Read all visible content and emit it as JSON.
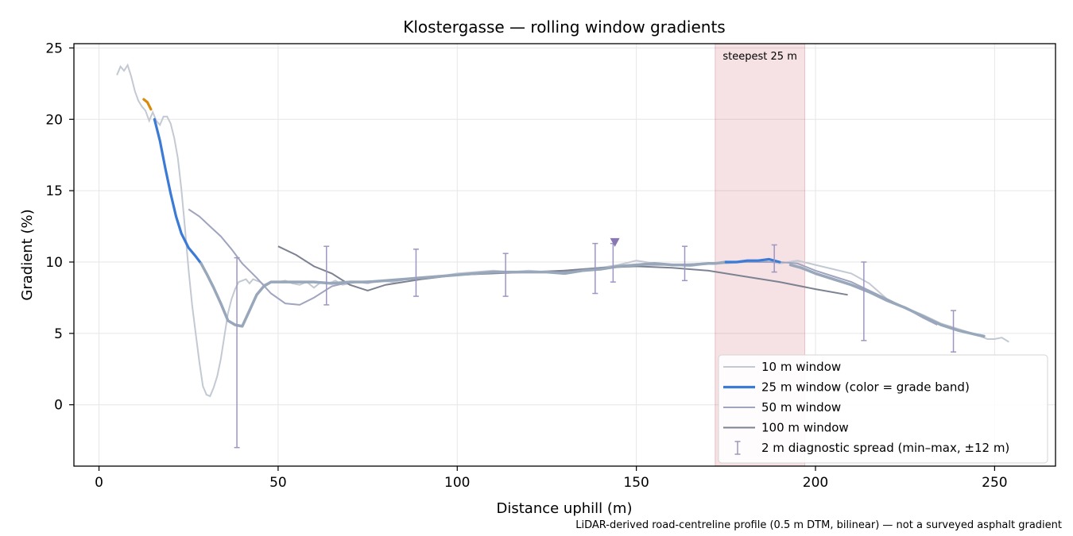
{
  "chart_data": {
    "type": "line",
    "title": "Klostergasse — rolling window gradients",
    "xlabel": "Distance uphill (m)",
    "ylabel": "Gradient (%)",
    "xlim": [
      -7,
      267
    ],
    "ylim": [
      -4.3,
      25.3
    ],
    "xticks": [
      0,
      50,
      100,
      150,
      200,
      250
    ],
    "yticks": [
      0,
      5,
      10,
      15,
      20,
      25
    ],
    "grid": true,
    "legend_position": "lower-right",
    "footnote": "LiDAR-derived road-centreline profile (0.5 m DTM, bilinear) — not a surveyed asphalt gradient",
    "highlight_band": {
      "x_start": 172,
      "x_end": 197,
      "label": "steepest 25 m",
      "color": "#c2303e"
    },
    "peak_marker": {
      "x": 144,
      "y": 11.4
    },
    "colors": {
      "w10": "#c3c9d3",
      "w25_steep": "#d98a0b",
      "w25": "#3b7bd6",
      "w25_gray": "#98a7ba",
      "w50": "#a0a4bf",
      "w100": "#7c8292",
      "errorbar": "#9e96c2",
      "marker": "#8877b0"
    },
    "series": [
      {
        "name": "10 m window",
        "x": [
          5,
          6,
          7,
          8,
          9,
          10,
          11,
          12,
          13,
          14,
          15,
          16,
          17,
          18,
          19,
          20,
          21,
          22,
          23,
          24,
          25,
          26,
          27,
          28,
          29,
          30,
          31,
          32,
          33,
          34,
          35,
          36,
          37,
          38,
          39,
          40,
          41,
          42,
          43,
          44,
          45,
          46,
          47,
          48,
          50,
          52,
          54,
          56,
          58,
          60,
          62,
          64,
          66,
          68,
          70,
          72,
          75,
          78,
          82,
          86,
          90,
          95,
          100,
          105,
          110,
          115,
          120,
          125,
          130,
          135,
          140,
          145,
          150,
          155,
          160,
          165,
          170,
          175,
          180,
          185,
          190,
          195,
          200,
          205,
          210,
          215,
          220,
          225,
          230,
          235,
          240,
          245,
          248,
          250,
          252,
          254
        ],
        "y": [
          23.1,
          23.7,
          23.4,
          23.8,
          23.0,
          22.0,
          21.3,
          20.9,
          20.6,
          19.9,
          20.5,
          19.9,
          19.6,
          20.2,
          20.2,
          19.7,
          18.7,
          17.3,
          15.1,
          12.4,
          9.5,
          7.0,
          5.0,
          3.0,
          1.3,
          0.7,
          0.6,
          1.2,
          2.0,
          3.2,
          4.8,
          6.4,
          7.4,
          8.1,
          8.6,
          8.7,
          8.8,
          8.5,
          8.8,
          8.7,
          8.6,
          8.4,
          8.5,
          8.6,
          8.6,
          8.7,
          8.5,
          8.4,
          8.6,
          8.2,
          8.6,
          8.5,
          8.7,
          8.4,
          8.5,
          8.6,
          8.5,
          8.7,
          8.6,
          8.8,
          8.9,
          9.0,
          9.2,
          9.3,
          9.4,
          9.3,
          9.4,
          9.3,
          9.4,
          9.5,
          9.6,
          9.8,
          10.1,
          9.9,
          9.8,
          9.7,
          9.9,
          9.9,
          10.0,
          10.1,
          9.9,
          10.1,
          9.8,
          9.5,
          9.2,
          8.5,
          7.4,
          6.8,
          6.3,
          5.7,
          5.3,
          4.9,
          4.6,
          4.6,
          4.7,
          4.4
        ]
      },
      {
        "name": "25 m window (color = grade band)",
        "x": [
          12.5,
          13.5,
          14.5,
          15.5,
          17,
          18.5,
          20,
          21.5,
          23,
          25,
          27,
          28.5,
          30,
          32,
          34,
          36,
          38,
          40,
          42,
          44,
          46,
          48,
          50,
          55,
          60,
          65,
          70,
          75,
          80,
          85,
          90,
          95,
          100,
          105,
          110,
          115,
          120,
          125,
          130,
          135,
          140,
          145,
          150,
          155,
          160,
          165,
          170,
          172,
          175,
          178,
          181,
          184,
          187,
          190,
          193,
          196,
          200,
          205,
          210,
          215,
          220,
          225,
          230,
          235,
          240,
          245,
          247
        ],
        "y": [
          21.4,
          21.2,
          20.7,
          20.0,
          18.5,
          16.6,
          14.8,
          13.2,
          12.0,
          11.0,
          10.4,
          9.9,
          9.2,
          8.2,
          7.1,
          5.9,
          5.6,
          5.5,
          6.6,
          7.7,
          8.3,
          8.6,
          8.6,
          8.6,
          8.6,
          8.5,
          8.6,
          8.6,
          8.7,
          8.8,
          8.9,
          9.0,
          9.1,
          9.2,
          9.3,
          9.3,
          9.3,
          9.3,
          9.2,
          9.4,
          9.5,
          9.7,
          9.8,
          9.9,
          9.8,
          9.8,
          9.9,
          9.9,
          10.0,
          10.0,
          10.1,
          10.1,
          10.2,
          10.0,
          9.8,
          9.6,
          9.2,
          8.8,
          8.4,
          7.9,
          7.3,
          6.8,
          6.2,
          5.6,
          5.2,
          4.9,
          4.8
        ],
        "band_colors": [
          "#d98a0b",
          "#3b7bd6",
          "#98a7ba",
          "#3b7bd6",
          "#98a7ba"
        ],
        "band_breaks": [
          15,
          28.5,
          175,
          191
        ]
      },
      {
        "name": "50 m window",
        "x": [
          25,
          28,
          31,
          34,
          37,
          40,
          44,
          48,
          52,
          56,
          60,
          65,
          70,
          80,
          90,
          100,
          110,
          120,
          130,
          140,
          150,
          160,
          170,
          180,
          190,
          195,
          200,
          205,
          210,
          215,
          220,
          225,
          230,
          234
        ],
        "y": [
          13.7,
          13.2,
          12.5,
          11.8,
          10.9,
          9.9,
          8.9,
          7.8,
          7.1,
          7.0,
          7.5,
          8.3,
          8.6,
          8.7,
          8.9,
          9.1,
          9.3,
          9.3,
          9.3,
          9.5,
          9.8,
          9.8,
          9.9,
          10.0,
          10.0,
          9.9,
          9.4,
          9.0,
          8.6,
          8.0,
          7.4,
          6.8,
          6.1,
          5.6
        ]
      },
      {
        "name": "100 m window",
        "x": [
          50,
          55,
          60,
          65,
          70,
          75,
          80,
          90,
          100,
          110,
          120,
          130,
          140,
          150,
          160,
          170,
          180,
          190,
          200,
          209
        ],
        "y": [
          11.1,
          10.5,
          9.7,
          9.2,
          8.4,
          8.0,
          8.4,
          8.8,
          9.1,
          9.2,
          9.3,
          9.4,
          9.6,
          9.7,
          9.6,
          9.4,
          9.0,
          8.6,
          8.1,
          7.7
        ]
      }
    ],
    "errorbars": {
      "name": "2 m diagnostic spread (min–max, ±12 m)",
      "points": [
        {
          "x": 38.5,
          "low": -3.0,
          "high": 10.3
        },
        {
          "x": 63.5,
          "low": 7.0,
          "high": 11.1
        },
        {
          "x": 88.5,
          "low": 7.6,
          "high": 10.9
        },
        {
          "x": 113.5,
          "low": 7.6,
          "high": 10.6
        },
        {
          "x": 138.5,
          "low": 7.8,
          "high": 11.3
        },
        {
          "x": 143.5,
          "low": 8.6,
          "high": 11.3
        },
        {
          "x": 163.5,
          "low": 8.7,
          "high": 11.1
        },
        {
          "x": 188.5,
          "low": 9.3,
          "high": 11.2
        },
        {
          "x": 213.5,
          "low": 4.5,
          "high": 10.0
        },
        {
          "x": 238.5,
          "low": 3.7,
          "high": 6.6
        }
      ]
    }
  }
}
